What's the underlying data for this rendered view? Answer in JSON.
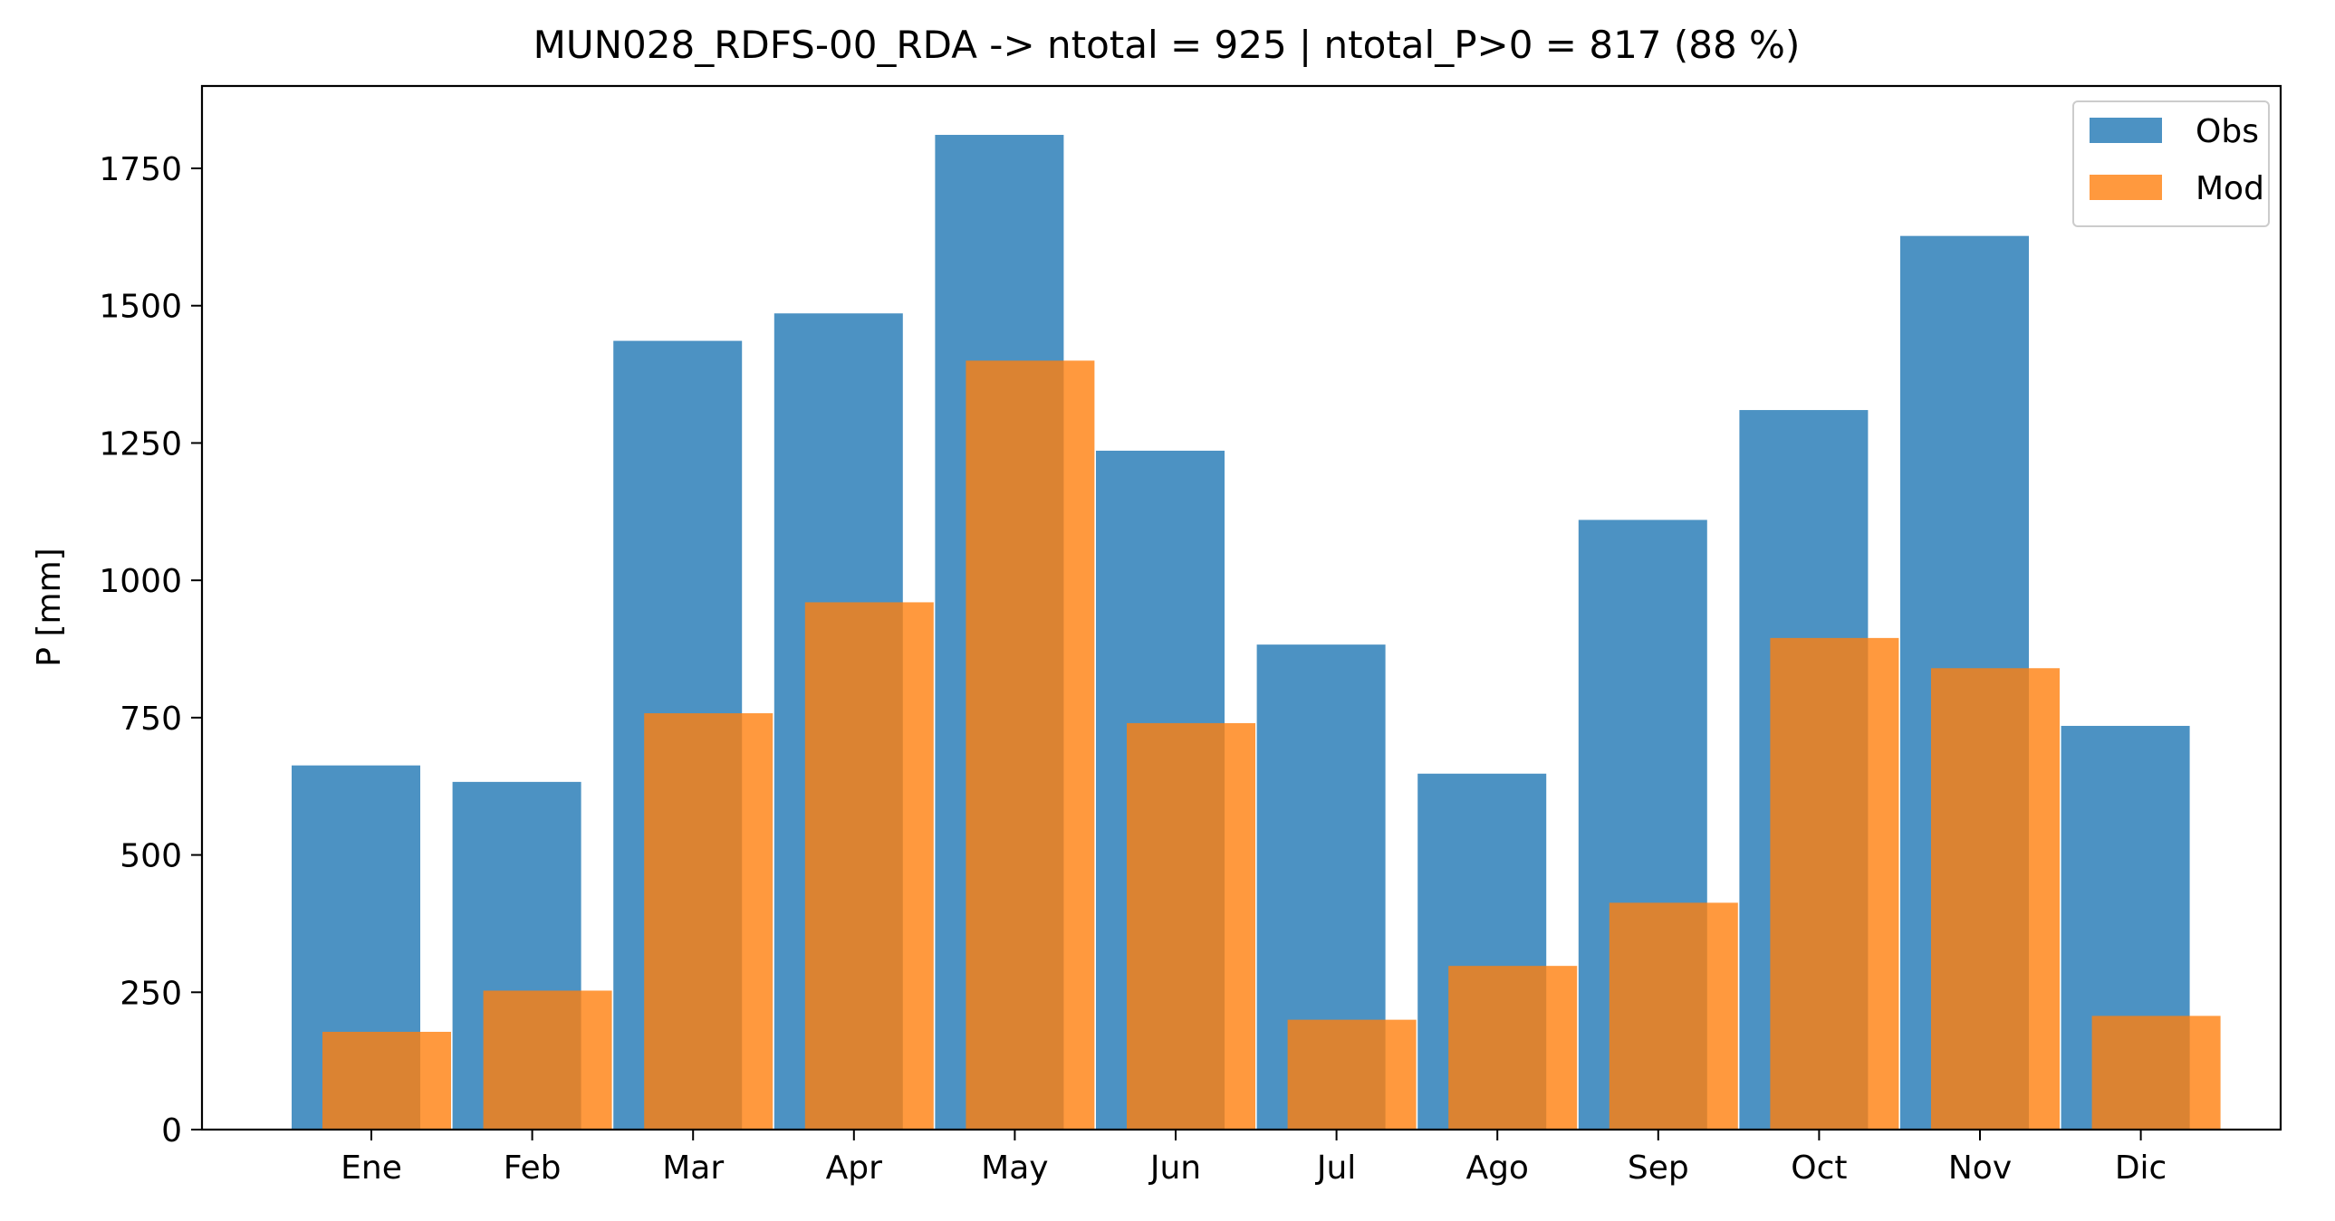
{
  "chart_data": {
    "type": "bar",
    "title": "MUN028_RDFS-00_RDA -> ntotal = 925 | ntotal_P>0 = 817 (88 %)",
    "xlabel": "",
    "ylabel": "P [mm]",
    "ylim": [
      0,
      1900
    ],
    "yticks": [
      0,
      250,
      500,
      750,
      1000,
      1250,
      1500,
      1750
    ],
    "categories": [
      "Ene",
      "Feb",
      "Mar",
      "Apr",
      "May",
      "Jun",
      "Jul",
      "Ago",
      "Sep",
      "Oct",
      "Nov",
      "Dic"
    ],
    "series": [
      {
        "name": "Obs",
        "color": "#1f77b4",
        "values": [
          663,
          633,
          1436,
          1486,
          1811,
          1236,
          883,
          648,
          1110,
          1310,
          1627,
          735
        ]
      },
      {
        "name": "Mod",
        "color": "#ff7f0e",
        "values": [
          178,
          253,
          758,
          960,
          1400,
          740,
          200,
          298,
          413,
          895,
          840,
          207
        ]
      }
    ],
    "grid": false,
    "legend_position": "top-right"
  }
}
